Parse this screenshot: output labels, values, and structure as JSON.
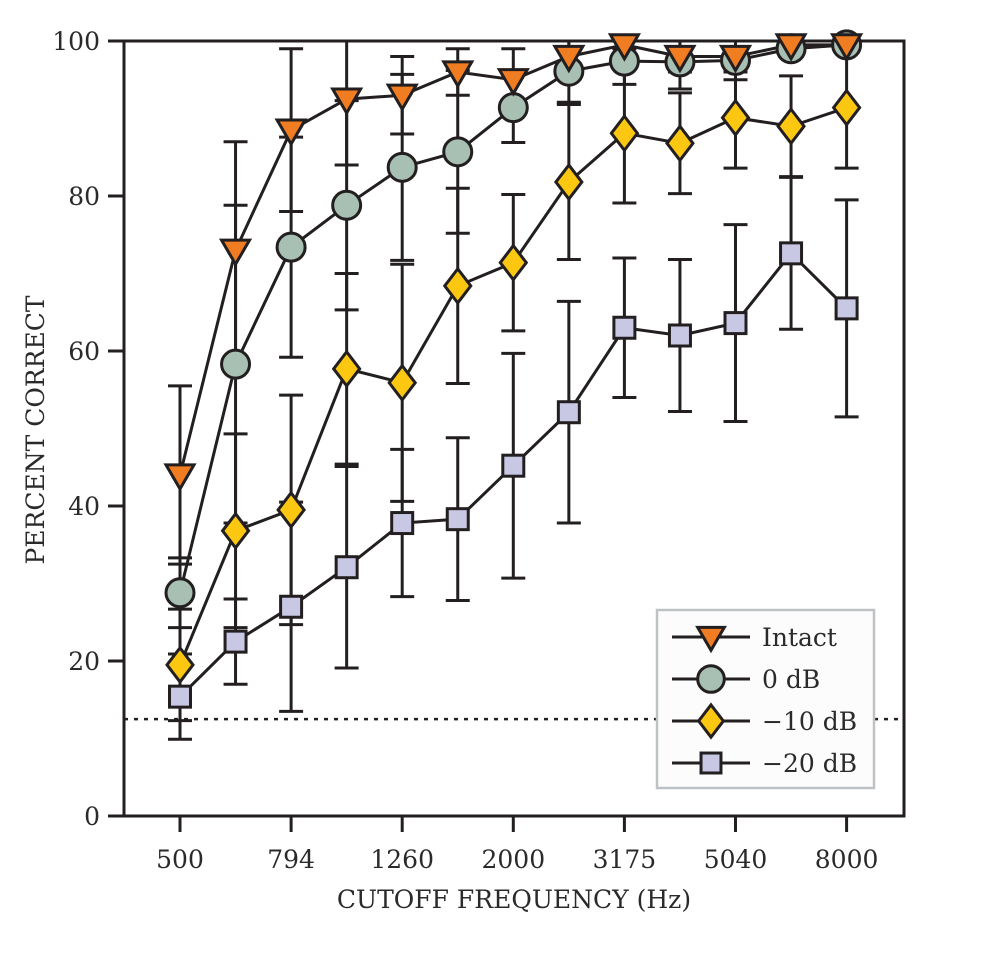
{
  "chart_data": {
    "type": "line",
    "title": "",
    "xlabel": "CUTOFF FREQUENCY (Hz)",
    "ylabel": "PERCENT CORRECT",
    "ylim": [
      0,
      100
    ],
    "x_tick_labels": [
      "500",
      "794",
      "1260",
      "2000",
      "3175",
      "5040",
      "8000"
    ],
    "y_tick_labels": [
      "0",
      "20",
      "40",
      "60",
      "80",
      "100"
    ],
    "y_ticks": [
      0,
      20,
      40,
      60,
      80,
      100
    ],
    "x": [
      500,
      630,
      794,
      1000,
      1260,
      1587,
      2000,
      2520,
      3175,
      4000,
      5040,
      6350,
      8000
    ],
    "x_scale": "log",
    "chance_level": 12.5,
    "grid": false,
    "legend_position": "bottom-right",
    "series": [
      {
        "name": "Intact",
        "marker": "triangle-down",
        "color": "#f07d22",
        "values": [
          44,
          73,
          88.5,
          92.5,
          93,
          96,
          95,
          98,
          99.5,
          98,
          98,
          99.5,
          99.5
        ],
        "error": [
          11.5,
          14,
          10.5,
          8.5,
          5,
          3,
          4,
          2,
          0.5,
          2,
          2,
          0.5,
          0.5
        ]
      },
      {
        "name": "0 dB",
        "marker": "circle",
        "color": "#a8bfb3",
        "values": [
          28.8,
          58.3,
          73.4,
          78.8,
          83.7,
          85.7,
          91.4,
          96.1,
          97.4,
          97.3,
          97.5,
          99,
          99.5
        ],
        "error": [
          4.5,
          20.5,
          14.2,
          13.5,
          12,
          10.5,
          4.5,
          4,
          3,
          3.5,
          2.5,
          1,
          0.5
        ]
      },
      {
        "name": "−10 dB",
        "marker": "diamond",
        "color": "#fbc711",
        "values": [
          19.5,
          36.8,
          39.5,
          57.7,
          55.9,
          68.4,
          71.4,
          81.8,
          88.1,
          86.8,
          90.1,
          89,
          91.4
        ],
        "error": [
          7.2,
          12.5,
          14.8,
          12.3,
          15.3,
          12.6,
          8.8,
          10,
          9,
          6.5,
          6.5,
          6.5,
          7.8
        ]
      },
      {
        "name": "−20 dB",
        "marker": "square",
        "color": "#c8c8e4",
        "values": [
          15.4,
          22.5,
          27,
          32.1,
          37.8,
          38.3,
          45.2,
          52.1,
          63,
          62,
          63.6,
          72.6,
          65.5
        ],
        "error": [
          5.5,
          5.5,
          13.5,
          13,
          9.5,
          10.5,
          14.5,
          14.3,
          9,
          9.8,
          12.7,
          9.8,
          14
        ]
      }
    ]
  }
}
